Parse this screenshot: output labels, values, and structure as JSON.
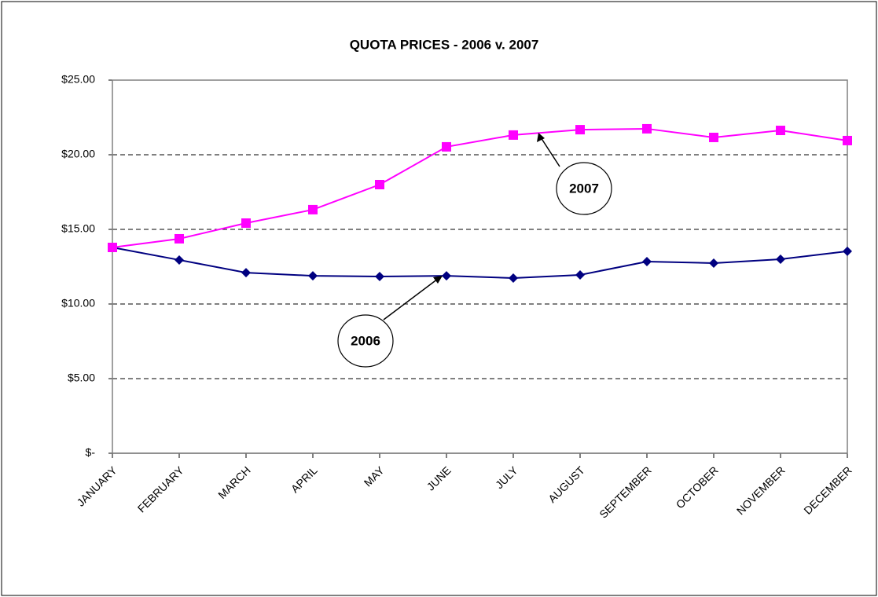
{
  "chart_data": {
    "type": "line",
    "title": "QUOTA PRICES - 2006 v. 2007",
    "categories": [
      "JANUARY",
      "FEBRUARY",
      "MARCH",
      "APRIL",
      "MAY",
      "JUNE",
      "JULY",
      "AUGUST",
      "SEPTEMBER",
      "OCTOBER",
      "NOVEMBER",
      "DECEMBER"
    ],
    "series": [
      {
        "name": "2006",
        "color": "#000080",
        "marker": "diamond",
        "values": [
          13.79,
          12.95,
          12.1,
          11.89,
          11.84,
          11.89,
          11.74,
          11.95,
          12.84,
          12.74,
          13.0,
          13.53
        ]
      },
      {
        "name": "2007",
        "color": "#ff00ff",
        "marker": "square",
        "values": [
          13.79,
          14.37,
          15.42,
          16.32,
          18.0,
          20.53,
          21.32,
          21.68,
          21.74,
          21.16,
          21.63,
          20.95
        ]
      }
    ],
    "ylim": [
      0,
      25
    ],
    "yticks": [
      {
        "value": 0,
        "label": "$-"
      },
      {
        "value": 5,
        "label": "$5.00"
      },
      {
        "value": 10,
        "label": "$10.00"
      },
      {
        "value": 15,
        "label": "$15.00"
      },
      {
        "value": 20,
        "label": "$20.00"
      },
      {
        "value": 25,
        "label": "$25.00"
      }
    ],
    "grid": true
  }
}
